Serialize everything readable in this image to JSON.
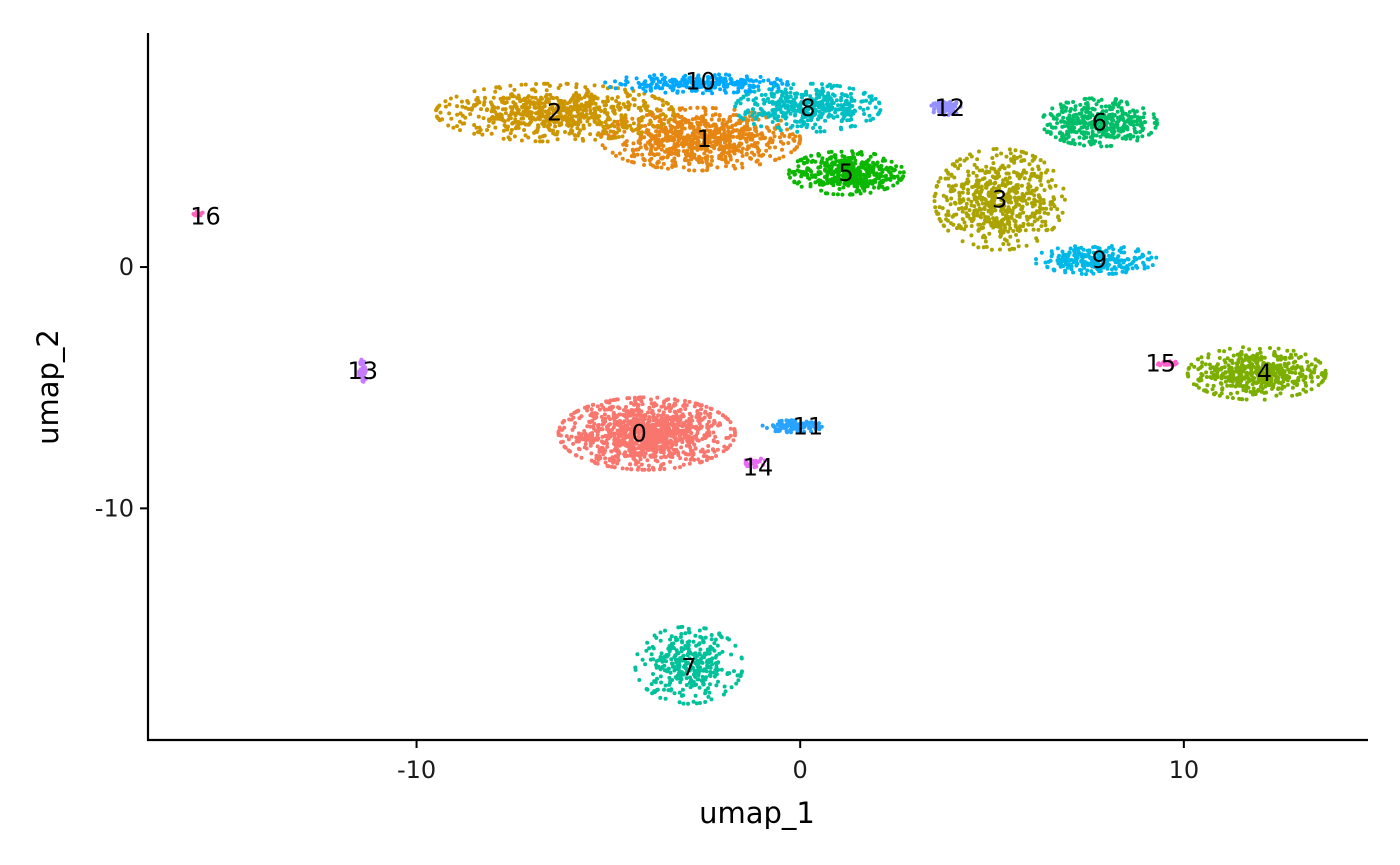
{
  "chart_data": {
    "type": "scatter",
    "title": "",
    "xlabel": "umap_1",
    "ylabel": "umap_2",
    "xlim": [
      -17,
      14.8
    ],
    "ylim": [
      -19.6,
      9.7
    ],
    "x_ticks": [
      {
        "value": -10,
        "label": "-10"
      },
      {
        "value": 0,
        "label": "0"
      },
      {
        "value": 10,
        "label": "10"
      }
    ],
    "y_ticks": [
      {
        "value": 0,
        "label": "0"
      },
      {
        "value": -10,
        "label": "-10"
      }
    ],
    "grid": false,
    "legend": "none",
    "clusters": [
      {
        "id": "0",
        "label": "0",
        "center": [
          -4.0,
          -6.9
        ],
        "spread": [
          2.3,
          1.5
        ],
        "points": 1100,
        "color": "#F8766D"
      },
      {
        "id": "1",
        "label": "1",
        "center": [
          -2.6,
          5.3
        ],
        "spread": [
          2.6,
          1.3
        ],
        "points": 800,
        "color": "#E68613"
      },
      {
        "id": "2",
        "label": "2",
        "center": [
          -6.4,
          6.4
        ],
        "spread": [
          3.1,
          1.2
        ],
        "points": 700,
        "color": "#CD9600"
      },
      {
        "id": "3",
        "label": "3",
        "center": [
          5.2,
          2.8
        ],
        "spread": [
          1.7,
          2.1
        ],
        "points": 600,
        "color": "#ABA300"
      },
      {
        "id": "4",
        "label": "4",
        "center": [
          11.9,
          -4.4
        ],
        "spread": [
          1.8,
          1.1
        ],
        "points": 500,
        "color": "#7CAE00"
      },
      {
        "id": "5",
        "label": "5",
        "center": [
          1.2,
          3.9
        ],
        "spread": [
          1.5,
          0.9
        ],
        "points": 450,
        "color": "#0CB702"
      },
      {
        "id": "6",
        "label": "6",
        "center": [
          7.8,
          6.0
        ],
        "spread": [
          1.5,
          1.0
        ],
        "points": 420,
        "color": "#00BE67"
      },
      {
        "id": "7",
        "label": "7",
        "center": [
          -2.9,
          -16.5
        ],
        "spread": [
          1.4,
          1.6
        ],
        "points": 350,
        "color": "#00C19A"
      },
      {
        "id": "8",
        "label": "8",
        "center": [
          0.2,
          6.6
        ],
        "spread": [
          1.9,
          1.0
        ],
        "points": 420,
        "color": "#00BFC4"
      },
      {
        "id": "9",
        "label": "9",
        "center": [
          7.7,
          0.3
        ],
        "spread": [
          1.6,
          0.6
        ],
        "points": 260,
        "color": "#00B8E7"
      },
      {
        "id": "10",
        "label": "10",
        "center": [
          -2.7,
          7.6
        ],
        "spread": [
          2.4,
          0.4
        ],
        "points": 260,
        "color": "#00A9FF"
      },
      {
        "id": "11",
        "label": "11",
        "center": [
          -0.2,
          -6.6
        ],
        "spread": [
          0.8,
          0.25
        ],
        "points": 120,
        "color": "#29A3FF"
      },
      {
        "id": "12",
        "label": "12",
        "center": [
          3.8,
          6.6
        ],
        "spread": [
          0.4,
          0.3
        ],
        "points": 110,
        "color": "#9590FF"
      },
      {
        "id": "13",
        "label": "13",
        "center": [
          -11.4,
          -4.3
        ],
        "spread": [
          0.1,
          0.5
        ],
        "points": 60,
        "color": "#C77CFF"
      },
      {
        "id": "14",
        "label": "14",
        "center": [
          -1.2,
          -8.1
        ],
        "spread": [
          0.3,
          0.2
        ],
        "points": 30,
        "color": "#E76BF3"
      },
      {
        "id": "15",
        "label": "15",
        "center": [
          9.6,
          -4.0
        ],
        "spread": [
          0.3,
          0.1
        ],
        "points": 30,
        "color": "#FF61C9"
      },
      {
        "id": "16",
        "label": "16",
        "center": [
          -15.7,
          2.2
        ],
        "spread": [
          0.15,
          0.1
        ],
        "points": 20,
        "color": "#FF62BC"
      }
    ],
    "cluster_labels": [
      {
        "text": "0",
        "x": -4.2,
        "y": -6.9
      },
      {
        "text": "1",
        "x": -2.5,
        "y": 5.3
      },
      {
        "text": "2",
        "x": -6.4,
        "y": 6.4
      },
      {
        "text": "3",
        "x": 5.2,
        "y": 2.8
      },
      {
        "text": "4",
        "x": 12.1,
        "y": -4.4
      },
      {
        "text": "5",
        "x": 1.2,
        "y": 3.9
      },
      {
        "text": "6",
        "x": 7.8,
        "y": 6.0
      },
      {
        "text": "7",
        "x": -2.9,
        "y": -16.6
      },
      {
        "text": "8",
        "x": 0.2,
        "y": 6.6
      },
      {
        "text": "9",
        "x": 7.8,
        "y": 0.3
      },
      {
        "text": "10",
        "x": -2.6,
        "y": 7.7
      },
      {
        "text": "11",
        "x": 0.2,
        "y": -6.6
      },
      {
        "text": "12",
        "x": 3.9,
        "y": 6.6
      },
      {
        "text": "13",
        "x": -11.4,
        "y": -4.3
      },
      {
        "text": "14",
        "x": -1.1,
        "y": -8.3
      },
      {
        "text": "15",
        "x": 9.4,
        "y": -4.0
      },
      {
        "text": "16",
        "x": -15.5,
        "y": 2.1
      }
    ]
  }
}
